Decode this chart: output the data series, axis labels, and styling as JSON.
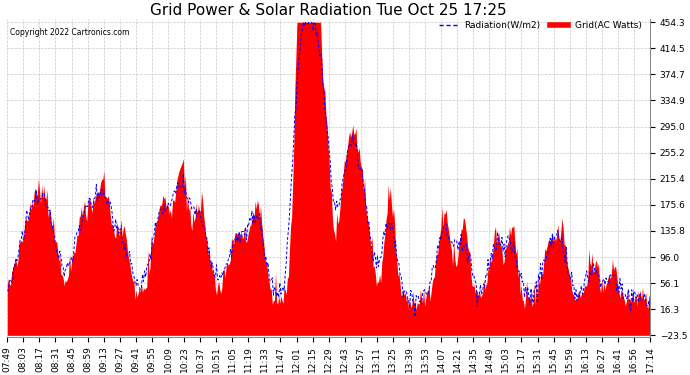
{
  "title": "Grid Power & Solar Radiation Tue Oct 25 17:25",
  "copyright": "Copyright 2022 Cartronics.com",
  "legend_radiation": "Radiation(W/m2)",
  "legend_grid": "Grid(AC Watts)",
  "ymin": -23.5,
  "ymax": 454.3,
  "yticks": [
    454.3,
    414.5,
    374.7,
    334.9,
    295.0,
    255.2,
    215.4,
    175.6,
    135.8,
    96.0,
    56.1,
    16.3,
    -23.5
  ],
  "background_color": "#ffffff",
  "grid_color": "#c8c8c8",
  "radiation_color": "#0000ff",
  "grid_power_color": "#ff0000",
  "title_fontsize": 11,
  "label_fontsize": 6.5,
  "xtick_labels": [
    "07:49",
    "08:03",
    "08:17",
    "08:31",
    "08:45",
    "08:59",
    "09:13",
    "09:27",
    "09:41",
    "09:55",
    "10:09",
    "10:23",
    "10:37",
    "10:51",
    "11:05",
    "11:19",
    "11:33",
    "11:47",
    "12:01",
    "12:15",
    "12:29",
    "12:43",
    "12:57",
    "13:11",
    "13:25",
    "13:39",
    "13:53",
    "14:07",
    "14:21",
    "14:35",
    "14:49",
    "15:03",
    "15:17",
    "15:31",
    "15:45",
    "15:59",
    "16:13",
    "16:27",
    "16:41",
    "16:56",
    "17:14"
  ]
}
